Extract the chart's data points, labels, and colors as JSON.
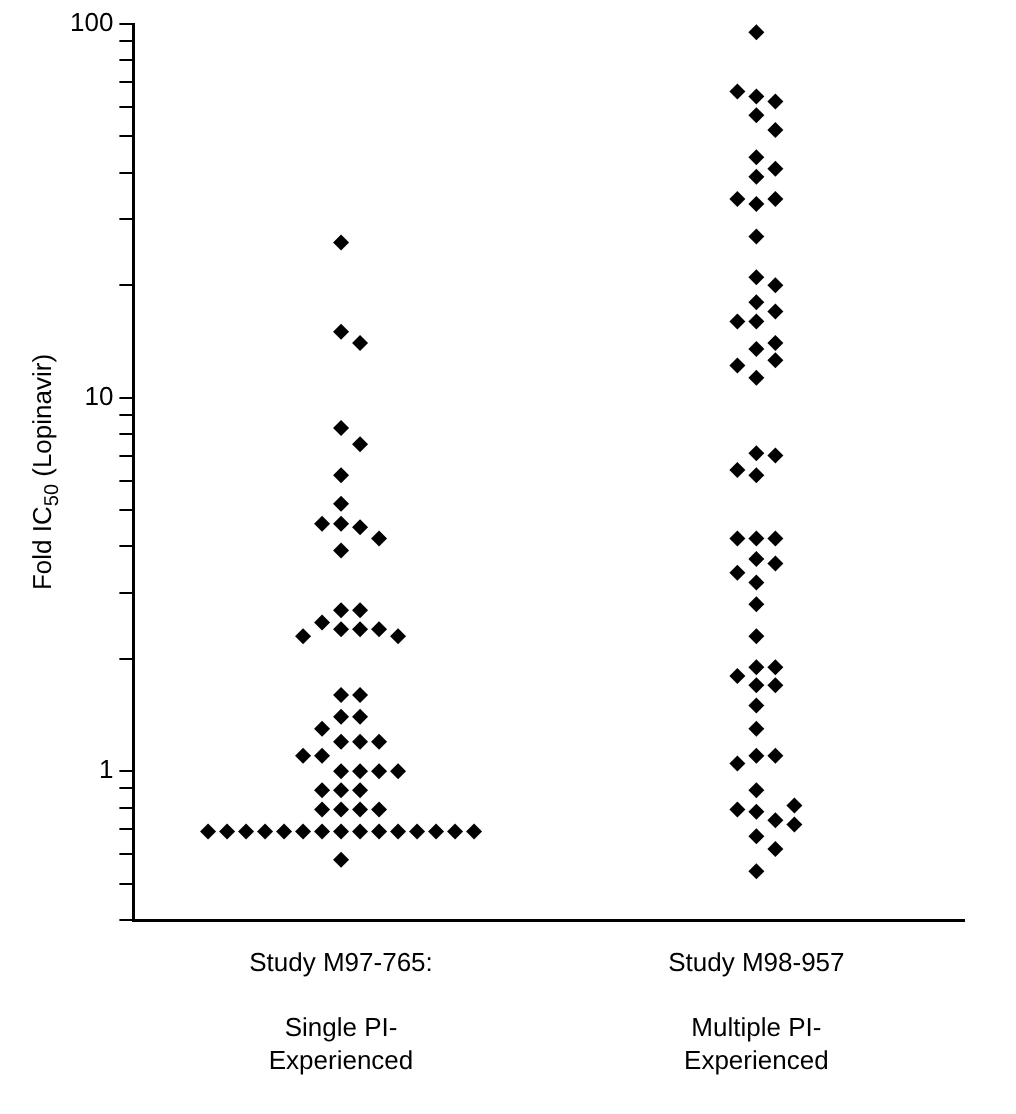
{
  "chart_data": {
    "type": "scatter",
    "ylabel": "Fold IC$_{50}$ (Lopinavir)",
    "categories": [
      "Study M97-765:\n\nSingle PI-\nExperienced",
      "Study M98-957\n\nMultiple PI-\nExperienced"
    ],
    "log": "y",
    "ylim": [
      0.4,
      100
    ],
    "yticks": [
      {
        "value": 0.4,
        "label": null
      },
      {
        "value": 0.5,
        "label": null
      },
      {
        "value": 0.6,
        "label": null
      },
      {
        "value": 0.7,
        "label": null
      },
      {
        "value": 0.8,
        "label": null
      },
      {
        "value": 0.9,
        "label": null
      },
      1,
      {
        "value": 2,
        "label": null
      },
      {
        "value": 3,
        "label": null
      },
      {
        "value": 4,
        "label": null
      },
      {
        "value": 5,
        "label": null
      },
      {
        "value": 6,
        "label": null
      },
      {
        "value": 7,
        "label": null
      },
      {
        "value": 8,
        "label": null
      },
      {
        "value": 9,
        "label": null
      },
      10,
      {
        "value": 20,
        "label": null
      },
      {
        "value": 30,
        "label": null
      },
      {
        "value": 40,
        "label": null
      },
      {
        "value": 50,
        "label": null
      },
      {
        "value": 60,
        "label": null
      },
      {
        "value": 70,
        "label": null
      },
      {
        "value": 80,
        "label": null
      },
      {
        "value": 90,
        "label": null
      },
      100
    ],
    "grid": false,
    "legend": false,
    "marker": "diamond",
    "series": [
      {
        "color": "#000000",
        "x": [
          "Study M97-765:\n\nSingle PI-\nExperienced",
          "Study M97-765:\n\nSingle PI-\nExperienced",
          "Study M97-765:\n\nSingle PI-\nExperienced",
          "Study M97-765:\n\nSingle PI-\nExperienced",
          "Study M97-765:\n\nSingle PI-\nExperienced",
          "Study M97-765:\n\nSingle PI-\nExperienced",
          "Study M97-765:\n\nSingle PI-\nExperienced",
          "Study M97-765:\n\nSingle PI-\nExperienced",
          "Study M97-765:\n\nSingle PI-\nExperienced",
          "Study M97-765:\n\nSingle PI-\nExperienced",
          "Study M97-765:\n\nSingle PI-\nExperienced",
          "Study M97-765:\n\nSingle PI-\nExperienced",
          "Study M97-765:\n\nSingle PI-\nExperienced",
          "Study M97-765:\n\nSingle PI-\nExperienced",
          "Study M97-765:\n\nSingle PI-\nExperienced",
          "Study M97-765:\n\nSingle PI-\nExperienced",
          "Study M97-765:\n\nSingle PI-\nExperienced",
          "Study M97-765:\n\nSingle PI-\nExperienced",
          "Study M97-765:\n\nSingle PI-\nExperienced",
          "Study M97-765:\n\nSingle PI-\nExperienced",
          "Study M97-765:\n\nSingle PI-\nExperienced",
          "Study M97-765:\n\nSingle PI-\nExperienced",
          "Study M97-765:\n\nSingle PI-\nExperienced",
          "Study M97-765:\n\nSingle PI-\nExperienced",
          "Study M97-765:\n\nSingle PI-\nExperienced",
          "Study M97-765:\n\nSingle PI-\nExperienced",
          "Study M97-765:\n\nSingle PI-\nExperienced",
          "Study M97-765:\n\nSingle PI-\nExperienced",
          "Study M97-765:\n\nSingle PI-\nExperienced",
          "Study M97-765:\n\nSingle PI-\nExperienced",
          "Study M97-765:\n\nSingle PI-\nExperienced",
          "Study M97-765:\n\nSingle PI-\nExperienced",
          "Study M97-765:\n\nSingle PI-\nExperienced",
          "Study M97-765:\n\nSingle PI-\nExperienced",
          "Study M97-765:\n\nSingle PI-\nExperienced",
          "Study M97-765:\n\nSingle PI-\nExperienced",
          "Study M97-765:\n\nSingle PI-\nExperienced",
          "Study M97-765:\n\nSingle PI-\nExperienced",
          "Study M97-765:\n\nSingle PI-\nExperienced",
          "Study M97-765:\n\nSingle PI-\nExperienced",
          "Study M97-765:\n\nSingle PI-\nExperienced",
          "Study M97-765:\n\nSingle PI-\nExperienced",
          "Study M97-765:\n\nSingle PI-\nExperienced",
          "Study M97-765:\n\nSingle PI-\nExperienced",
          "Study M97-765:\n\nSingle PI-\nExperienced",
          "Study M97-765:\n\nSingle PI-\nExperienced",
          "Study M97-765:\n\nSingle PI-\nExperienced",
          "Study M97-765:\n\nSingle PI-\nExperienced",
          "Study M97-765:\n\nSingle PI-\nExperienced",
          "Study M97-765:\n\nSingle PI-\nExperienced",
          "Study M97-765:\n\nSingle PI-\nExperienced",
          "Study M97-765:\n\nSingle PI-\nExperienced",
          "Study M97-765:\n\nSingle PI-\nExperienced",
          "Study M97-765:\n\nSingle PI-\nExperienced",
          "Study M97-765:\n\nSingle PI-\nExperienced",
          "Study M97-765:\n\nSingle PI-\nExperienced",
          "Study M97-765:\n\nSingle PI-\nExperienced"
        ],
        "values": [
          26,
          15,
          14,
          8.3,
          7.5,
          6.2,
          5.2,
          4.6,
          4.5,
          4.6,
          4.2,
          3.9,
          2.7,
          2.7,
          2.4,
          2.4,
          2.5,
          2.4,
          2.3,
          2.3,
          1.6,
          1.6,
          1.4,
          1.4,
          1.3,
          1.2,
          1.2,
          1.2,
          1.1,
          1.1,
          1.0,
          1.0,
          1.0,
          1.0,
          0.89,
          0.89,
          0.89,
          0.79,
          0.79,
          0.79,
          0.79,
          0.69,
          0.69,
          0.69,
          0.69,
          0.69,
          0.69,
          0.69,
          0.69,
          0.69,
          0.69,
          0.69,
          0.69,
          0.69,
          0.69,
          0.69,
          0.58
        ]
      },
      {
        "color": "#000000",
        "x": [
          "Study M98-957\n\nMultiple PI-\nExperienced",
          "Study M98-957\n\nMultiple PI-\nExperienced",
          "Study M98-957\n\nMultiple PI-\nExperienced",
          "Study M98-957\n\nMultiple PI-\nExperienced",
          "Study M98-957\n\nMultiple PI-\nExperienced",
          "Study M98-957\n\nMultiple PI-\nExperienced",
          "Study M98-957\n\nMultiple PI-\nExperienced",
          "Study M98-957\n\nMultiple PI-\nExperienced",
          "Study M98-957\n\nMultiple PI-\nExperienced",
          "Study M98-957\n\nMultiple PI-\nExperienced",
          "Study M98-957\n\nMultiple PI-\nExperienced",
          "Study M98-957\n\nMultiple PI-\nExperienced",
          "Study M98-957\n\nMultiple PI-\nExperienced",
          "Study M98-957\n\nMultiple PI-\nExperienced",
          "Study M98-957\n\nMultiple PI-\nExperienced",
          "Study M98-957\n\nMultiple PI-\nExperienced",
          "Study M98-957\n\nMultiple PI-\nExperienced",
          "Study M98-957\n\nMultiple PI-\nExperienced",
          "Study M98-957\n\nMultiple PI-\nExperienced",
          "Study M98-957\n\nMultiple PI-\nExperienced",
          "Study M98-957\n\nMultiple PI-\nExperienced",
          "Study M98-957\n\nMultiple PI-\nExperienced",
          "Study M98-957\n\nMultiple PI-\nExperienced",
          "Study M98-957\n\nMultiple PI-\nExperienced",
          "Study M98-957\n\nMultiple PI-\nExperienced",
          "Study M98-957\n\nMultiple PI-\nExperienced",
          "Study M98-957\n\nMultiple PI-\nExperienced",
          "Study M98-957\n\nMultiple PI-\nExperienced",
          "Study M98-957\n\nMultiple PI-\nExperienced",
          "Study M98-957\n\nMultiple PI-\nExperienced",
          "Study M98-957\n\nMultiple PI-\nExperienced",
          "Study M98-957\n\nMultiple PI-\nExperienced",
          "Study M98-957\n\nMultiple PI-\nExperienced",
          "Study M98-957\n\nMultiple PI-\nExperienced",
          "Study M98-957\n\nMultiple PI-\nExperienced",
          "Study M98-957\n\nMultiple PI-\nExperienced",
          "Study M98-957\n\nMultiple PI-\nExperienced",
          "Study M98-957\n\nMultiple PI-\nExperienced",
          "Study M98-957\n\nMultiple PI-\nExperienced",
          "Study M98-957\n\nMultiple PI-\nExperienced",
          "Study M98-957\n\nMultiple PI-\nExperienced",
          "Study M98-957\n\nMultiple PI-\nExperienced",
          "Study M98-957\n\nMultiple PI-\nExperienced",
          "Study M98-957\n\nMultiple PI-\nExperienced",
          "Study M98-957\n\nMultiple PI-\nExperienced",
          "Study M98-957\n\nMultiple PI-\nExperienced",
          "Study M98-957\n\nMultiple PI-\nExperienced",
          "Study M98-957\n\nMultiple PI-\nExperienced",
          "Study M98-957\n\nMultiple PI-\nExperienced",
          "Study M98-957\n\nMultiple PI-\nExperienced",
          "Study M98-957\n\nMultiple PI-\nExperienced",
          "Study M98-957\n\nMultiple PI-\nExperienced",
          "Study M98-957\n\nMultiple PI-\nExperienced",
          "Study M98-957\n\nMultiple PI-\nExperienced",
          "Study M98-957\n\nMultiple PI-\nExperienced",
          "Study M98-957\n\nMultiple PI-\nExperienced"
        ],
        "values": [
          95,
          64,
          62,
          66,
          57,
          52,
          44,
          41,
          39,
          33,
          34,
          34,
          27,
          21,
          20,
          18,
          17,
          16,
          16,
          13.5,
          14,
          12.6,
          12.2,
          11.3,
          7.1,
          7.0,
          6.2,
          6.4,
          4.2,
          4.2,
          4.2,
          3.7,
          3.6,
          3.4,
          3.2,
          2.8,
          2.3,
          1.9,
          1.9,
          1.7,
          1.8,
          1.7,
          1.5,
          1.3,
          1.1,
          1.1,
          1.05,
          0.89,
          0.78,
          0.74,
          0.79,
          0.81,
          0.72,
          0.67,
          0.62,
          0.54
        ]
      }
    ]
  }
}
